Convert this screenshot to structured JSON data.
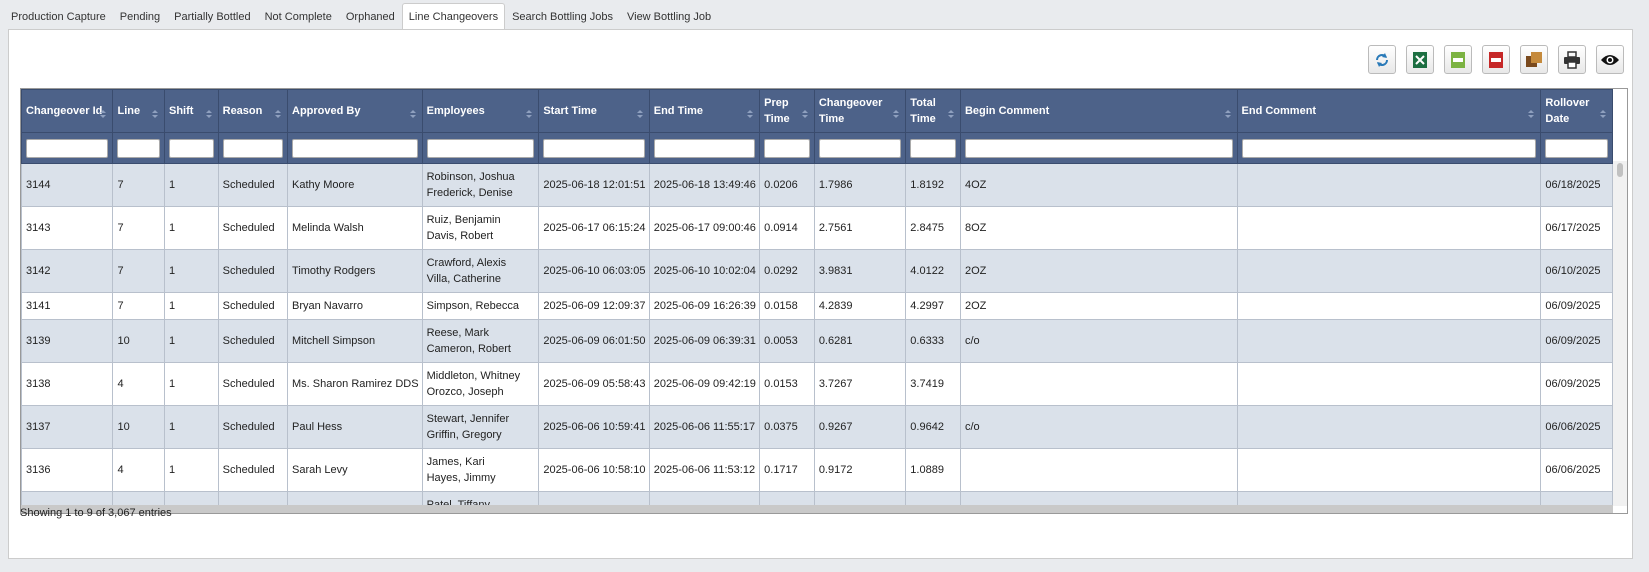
{
  "tabs": [
    "Production Capture",
    "Pending",
    "Partially Bottled",
    "Not Complete",
    "Orphaned",
    "Line Changeovers",
    "Search Bottling Jobs",
    "View Bottling Job"
  ],
  "active_tab": 5,
  "table": {
    "columns": [
      "Changeover Id",
      "Line",
      "Shift",
      "Reason",
      "Approved By",
      "Employees",
      "Start Time",
      "End Time",
      "Prep Time",
      "Changeover Time",
      "Total Time",
      "Begin Comment",
      "End Comment",
      "Rollover Date"
    ],
    "rows": [
      {
        "id": "3144",
        "line": "7",
        "shift": "1",
        "reason": "Scheduled",
        "approved_by": "Kathy Moore",
        "employees": [
          "Robinson, Joshua",
          "Frederick, Denise"
        ],
        "start_time": "2025-06-18 12:01:51",
        "end_time": "2025-06-18 13:49:46",
        "prep_time": "0.0206",
        "changeover_time": "1.7986",
        "total_time": "1.8192",
        "begin_comment": "4OZ",
        "rollover_date": "06/18/2025"
      },
      {
        "id": "3143",
        "line": "7",
        "shift": "1",
        "reason": "Scheduled",
        "approved_by": "Melinda Walsh",
        "employees": [
          "Ruiz, Benjamin",
          "Davis, Robert"
        ],
        "start_time": "2025-06-17 06:15:24",
        "end_time": "2025-06-17 09:00:46",
        "prep_time": "0.0914",
        "changeover_time": "2.7561",
        "total_time": "2.8475",
        "begin_comment": "8OZ",
        "rollover_date": "06/17/2025"
      },
      {
        "id": "3142",
        "line": "7",
        "shift": "1",
        "reason": "Scheduled",
        "approved_by": "Timothy Rodgers",
        "employees": [
          "Crawford, Alexis",
          "Villa, Catherine"
        ],
        "start_time": "2025-06-10 06:03:05",
        "end_time": "2025-06-10 10:02:04",
        "prep_time": "0.0292",
        "changeover_time": "3.9831",
        "total_time": "4.0122",
        "begin_comment": "2OZ",
        "rollover_date": "06/10/2025"
      },
      {
        "id": "3141",
        "line": "7",
        "shift": "1",
        "reason": "Scheduled",
        "approved_by": "Bryan Navarro",
        "employees": [
          "Simpson, Rebecca"
        ],
        "start_time": "2025-06-09 12:09:37",
        "end_time": "2025-06-09 16:26:39",
        "prep_time": "0.0158",
        "changeover_time": "4.2839",
        "total_time": "4.2997",
        "begin_comment": "2OZ",
        "rollover_date": "06/09/2025"
      },
      {
        "id": "3139",
        "line": "10",
        "shift": "1",
        "reason": "Scheduled",
        "approved_by": "Mitchell Simpson",
        "employees": [
          "Reese, Mark",
          "Cameron, Robert"
        ],
        "start_time": "2025-06-09 06:01:50",
        "end_time": "2025-06-09 06:39:31",
        "prep_time": "0.0053",
        "changeover_time": "0.6281",
        "total_time": "0.6333",
        "begin_comment": "c/o",
        "rollover_date": "06/09/2025"
      },
      {
        "id": "3138",
        "line": "4",
        "shift": "1",
        "reason": "Scheduled",
        "approved_by": "Ms. Sharon Ramirez DDS",
        "employees": [
          "Middleton, Whitney",
          "Orozco, Joseph"
        ],
        "start_time": "2025-06-09 05:58:43",
        "end_time": "2025-06-09 09:42:19",
        "prep_time": "0.0153",
        "changeover_time": "3.7267",
        "total_time": "3.7419",
        "rollover_date": "06/09/2025"
      },
      {
        "id": "3137",
        "line": "10",
        "shift": "1",
        "reason": "Scheduled",
        "approved_by": "Paul Hess",
        "employees": [
          "Stewart, Jennifer",
          "Griffin, Gregory"
        ],
        "start_time": "2025-06-06 10:59:41",
        "end_time": "2025-06-06 11:55:17",
        "prep_time": "0.0375",
        "changeover_time": "0.9267",
        "total_time": "0.9642",
        "begin_comment": "c/o",
        "rollover_date": "06/06/2025"
      },
      {
        "id": "3136",
        "line": "4",
        "shift": "1",
        "reason": "Scheduled",
        "approved_by": "Sarah Levy",
        "employees": [
          "James, Kari",
          "Hayes, Jimmy"
        ],
        "start_time": "2025-06-06 10:58:10",
        "end_time": "2025-06-06 11:53:12",
        "prep_time": "0.1717",
        "changeover_time": "0.9172",
        "total_time": "1.0889",
        "rollover_date": "06/06/2025"
      },
      {
        "employees": [
          "Patel, Tiffany"
        ]
      }
    ]
  },
  "footer": "Showing 1 to 9 of 3,067 entries"
}
